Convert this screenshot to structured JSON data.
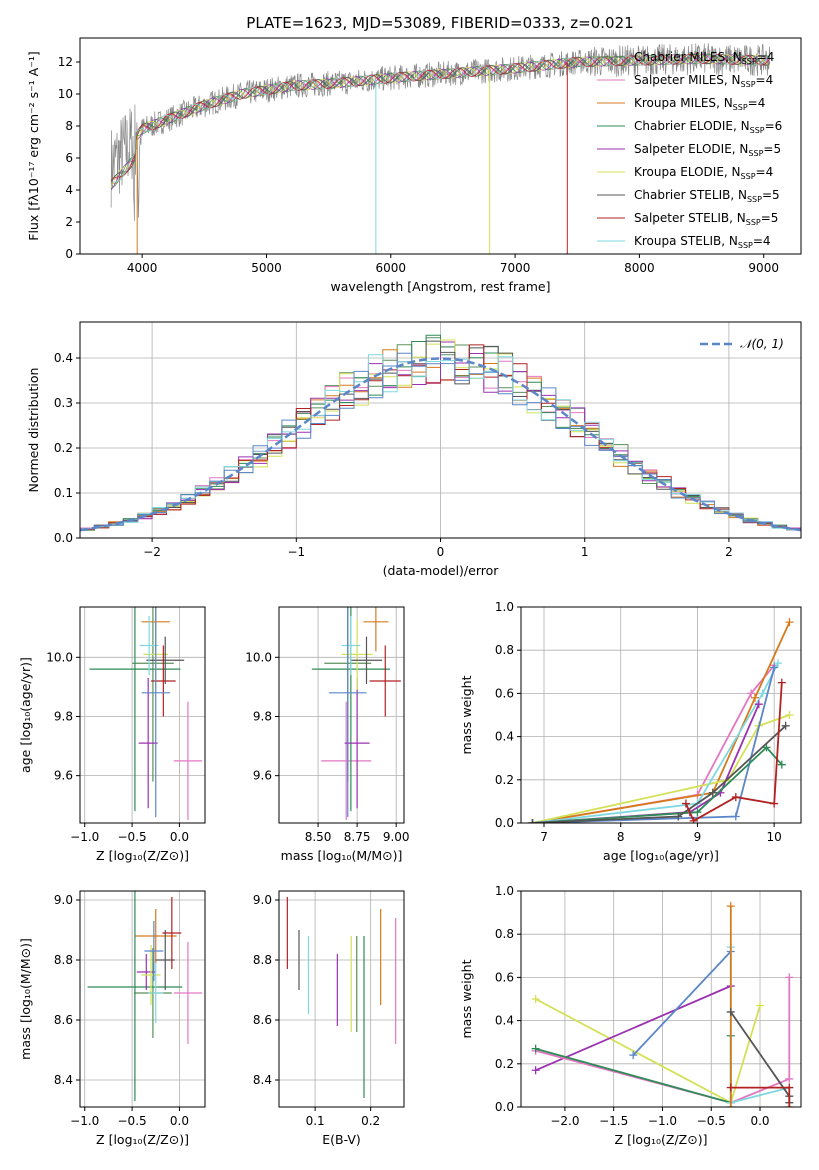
{
  "figure": {
    "title": "PLATE=1623, MJD=53089, FIBERID=0333, z=0.021"
  },
  "colors": {
    "Chabrier MILES": "#5b8f5b",
    "Salpeter MILES": "#e377c2",
    "Kroupa MILES": "#d67a1c",
    "Chabrier ELODIE": "#2e8b57",
    "Salpeter ELODIE": "#9b30b0",
    "Kroupa ELODIE": "#d4e157",
    "Chabrier STELIB": "#555555",
    "Salpeter STELIB": "#b22222",
    "Kroupa STELIB": "#7fd8e0",
    "normal": "#5b86c8",
    "data": "#888888"
  },
  "chart_data": [
    {
      "id": "spectrum",
      "type": "line",
      "title": "PLATE=1623, MJD=53089, FIBERID=0333, z=0.021",
      "xlabel": "wavelength [Angstrom, rest frame]",
      "ylabel": "Flux [fλ10⁻¹⁷ erg cm⁻² s⁻¹ A⁻¹]",
      "xlim": [
        3500,
        9300
      ],
      "ylim": [
        0,
        13.5
      ],
      "xticks": [
        4000,
        5000,
        6000,
        7000,
        8000,
        9000
      ],
      "yticks": [
        0,
        2,
        4,
        6,
        8,
        10,
        12
      ],
      "grid": false,
      "legend_position": "right",
      "legend": [
        {
          "name": "Chabrier MILES",
          "nssp": "4"
        },
        {
          "name": "Salpeter MILES",
          "nssp": "4"
        },
        {
          "name": "Kroupa MILES",
          "nssp": "4"
        },
        {
          "name": "Chabrier ELODIE",
          "nssp": "6"
        },
        {
          "name": "Salpeter ELODIE",
          "nssp": "5"
        },
        {
          "name": "Kroupa ELODIE",
          "nssp": "4"
        },
        {
          "name": "Chabrier STELIB",
          "nssp": "5"
        },
        {
          "name": "Salpeter STELIB",
          "nssp": "5"
        },
        {
          "name": "Kroupa STELIB",
          "nssp": "4"
        }
      ],
      "continuum": {
        "x": [
          3750,
          3900,
          4000,
          4200,
          4500,
          4800,
          5200,
          5600,
          6000,
          6500,
          7000,
          7500,
          8000,
          8500,
          9000
        ],
        "y": [
          5.5,
          6.8,
          7.8,
          8.4,
          9.3,
          10.0,
          10.5,
          10.7,
          11.0,
          11.3,
          11.6,
          12.0,
          12.1,
          12.2,
          12.1
        ]
      }
    },
    {
      "id": "residuals",
      "type": "histogram",
      "xlabel": "(data-model)/error",
      "ylabel": "Normed distribution",
      "xlim": [
        -2.5,
        2.5
      ],
      "ylim": [
        0,
        0.48
      ],
      "xticks": [
        -2,
        -1,
        0,
        1,
        2
      ],
      "xticklabels": [
        "−2",
        "−1",
        "0",
        "1",
        "2"
      ],
      "yticks": [
        0,
        0.1,
        0.2,
        0.3,
        0.4
      ],
      "yticklabels": [
        "0.0",
        "0.1",
        "0.2",
        "0.3",
        "0.4"
      ],
      "grid": true,
      "legend_position": "top-right",
      "legend": [
        "𝒩(0, 1)"
      ],
      "bin_width": 0.1
    },
    {
      "id": "z-age",
      "type": "scatter",
      "xlabel": "Z [log₁₀(Z/Z⊙)]",
      "ylabel": "age  [log₁₀(age/yr)]",
      "xlim": [
        -1.05,
        0.27
      ],
      "ylim": [
        9.44,
        10.17
      ],
      "xticks": [
        -1.0,
        -0.5,
        0.0
      ],
      "xticklabels": [
        "−1.0",
        "−0.5",
        "0.0"
      ],
      "yticks": [
        9.6,
        9.8,
        10.0
      ],
      "yticklabels": [
        "9.6",
        "9.8",
        "10.0"
      ],
      "grid": true,
      "points": [
        {
          "series": "Chabrier MILES",
          "x": -0.28,
          "y": 9.98,
          "xerr": 0.22,
          "yerr": 0.4
        },
        {
          "series": "Salpeter MILES",
          "x": 0.09,
          "y": 9.65,
          "xerr": 0.15,
          "yerr": 0.2
        },
        {
          "series": "Kroupa MILES",
          "x": -0.25,
          "y": 10.12,
          "xerr": 0.15,
          "yerr": 0.1
        },
        {
          "series": "Chabrier ELODIE",
          "x": -0.47,
          "y": 9.96,
          "xerr": 0.48,
          "yerr": 0.48
        },
        {
          "series": "Salpeter ELODIE",
          "x": -0.33,
          "y": 9.71,
          "xerr": 0.1,
          "yerr": 0.22
        },
        {
          "series": "Kroupa ELODIE",
          "x": -0.25,
          "y": 10.01,
          "xerr": 0.13,
          "yerr": 0.12
        },
        {
          "series": "Chabrier STELIB",
          "x": -0.15,
          "y": 9.99,
          "xerr": 0.2,
          "yerr": 0.08
        },
        {
          "series": "Salpeter STELIB",
          "x": -0.17,
          "y": 9.92,
          "xerr": 0.13,
          "yerr": 0.12
        },
        {
          "series": "Kroupa STELIB",
          "x": -0.32,
          "y": 10.04,
          "xerr": 0.1,
          "yerr": 0.1
        },
        {
          "series": "normal",
          "x": -0.25,
          "y": 9.88,
          "xerr": 0.15,
          "yerr": 0.42
        }
      ]
    },
    {
      "id": "mass-age",
      "type": "scatter",
      "xlabel": "mass [log₁₀(M/M⊙)]",
      "ylabel": "",
      "xlim": [
        8.25,
        9.05
      ],
      "ylim": [
        9.44,
        10.17
      ],
      "xticks": [
        8.5,
        8.75,
        9.0
      ],
      "xticklabels": [
        "8.50",
        "8.75",
        "9.00"
      ],
      "yticks": [
        9.6,
        9.8,
        10.0
      ],
      "yticklabels": [
        "9.6",
        "9.8",
        "10.0"
      ],
      "grid": true,
      "points": [
        {
          "series": "Chabrier MILES",
          "x": 8.69,
          "y": 9.98,
          "xerr": 0.15,
          "yerr": 0.4
        },
        {
          "series": "Salpeter MILES",
          "x": 8.68,
          "y": 9.65,
          "xerr": 0.16,
          "yerr": 0.2
        },
        {
          "series": "Kroupa MILES",
          "x": 8.87,
          "y": 10.12,
          "xerr": 0.08,
          "yerr": 0.1
        },
        {
          "series": "Chabrier ELODIE",
          "x": 8.71,
          "y": 9.96,
          "xerr": 0.25,
          "yerr": 0.48
        },
        {
          "series": "Salpeter ELODIE",
          "x": 8.75,
          "y": 9.71,
          "xerr": 0.08,
          "yerr": 0.22
        },
        {
          "series": "Kroupa ELODIE",
          "x": 8.75,
          "y": 10.01,
          "xerr": 0.1,
          "yerr": 0.12
        },
        {
          "series": "Chabrier STELIB",
          "x": 8.81,
          "y": 9.99,
          "xerr": 0.1,
          "yerr": 0.08
        },
        {
          "series": "Salpeter STELIB",
          "x": 8.93,
          "y": 9.92,
          "xerr": 0.1,
          "yerr": 0.12
        },
        {
          "series": "Kroupa STELIB",
          "x": 8.71,
          "y": 10.04,
          "xerr": 0.06,
          "yerr": 0.1
        },
        {
          "series": "normal",
          "x": 8.69,
          "y": 9.88,
          "xerr": 0.12,
          "yerr": 0.42
        }
      ]
    },
    {
      "id": "age-weight",
      "type": "line",
      "xlabel": "age  [log₁₀(age/yr)]",
      "ylabel": "mass weight",
      "xlim": [
        6.7,
        10.35
      ],
      "ylim": [
        0,
        1.0
      ],
      "xticks": [
        7,
        8,
        9,
        10
      ],
      "yticks": [
        0,
        0.2,
        0.4,
        0.6,
        0.8,
        1.0
      ],
      "yticklabels": [
        "0.0",
        "0.2",
        "0.4",
        "0.6",
        "0.8",
        "1.0"
      ],
      "grid": true,
      "series": [
        {
          "name": "Salpeter MILES",
          "x": [
            6.85,
            9.0,
            9.7,
            10.0
          ],
          "y": [
            0.0,
            0.13,
            0.6,
            0.73
          ]
        },
        {
          "name": "Kroupa MILES",
          "x": [
            6.85,
            9.2,
            9.75,
            10.2
          ],
          "y": [
            0.0,
            0.14,
            0.58,
            0.93
          ]
        },
        {
          "name": "Kroupa ELODIE",
          "x": [
            6.85,
            9.4,
            9.8,
            10.2
          ],
          "y": [
            0.0,
            0.2,
            0.45,
            0.5
          ]
        },
        {
          "name": "Kroupa STELIB",
          "x": [
            6.85,
            9.0,
            9.85,
            10.05
          ],
          "y": [
            0.0,
            0.09,
            0.6,
            0.74
          ]
        },
        {
          "name": "normal",
          "x": [
            6.85,
            9.5,
            10.0
          ],
          "y": [
            0.0,
            0.03,
            0.72
          ]
        },
        {
          "name": "Salpeter ELODIE",
          "x": [
            6.85,
            8.9,
            9.3,
            9.8
          ],
          "y": [
            0.0,
            0.05,
            0.14,
            0.55
          ]
        },
        {
          "name": "Chabrier ELODIE",
          "x": [
            6.85,
            9.0,
            9.9,
            10.1
          ],
          "y": [
            0.0,
            0.05,
            0.35,
            0.27
          ]
        },
        {
          "name": "Chabrier STELIB",
          "x": [
            6.85,
            8.75,
            9.2,
            10.15
          ],
          "y": [
            0.0,
            0.03,
            0.14,
            0.45
          ]
        },
        {
          "name": "Salpeter STELIB",
          "x": [
            8.85,
            8.95,
            9.5,
            10.0,
            10.1
          ],
          "y": [
            0.09,
            0.01,
            0.12,
            0.09,
            0.65
          ]
        }
      ]
    },
    {
      "id": "z-mass",
      "type": "scatter",
      "xlabel": "Z [log₁₀(Z/Z⊙)]",
      "ylabel": "mass [log₁₀(M/M⊙)]",
      "xlim": [
        -1.05,
        0.27
      ],
      "ylim": [
        8.31,
        9.03
      ],
      "xticks": [
        -1.0,
        -0.5,
        0.0
      ],
      "xticklabels": [
        "−1.0",
        "−0.5",
        "0.0"
      ],
      "yticks": [
        8.4,
        8.6,
        8.8,
        9.0
      ],
      "yticklabels": [
        "8.4",
        "8.6",
        "8.8",
        "9.0"
      ],
      "grid": true,
      "points": [
        {
          "series": "Chabrier MILES",
          "x": -0.28,
          "y": 8.69,
          "xerr": 0.2,
          "yerr": 0.15
        },
        {
          "series": "Salpeter MILES",
          "x": 0.09,
          "y": 8.69,
          "xerr": 0.15,
          "yerr": 0.17
        },
        {
          "series": "Kroupa MILES",
          "x": -0.25,
          "y": 8.88,
          "xerr": 0.22,
          "yerr": 0.09
        },
        {
          "series": "Chabrier ELODIE",
          "x": -0.47,
          "y": 8.71,
          "xerr": 0.5,
          "yerr": 0.38
        },
        {
          "series": "Salpeter ELODIE",
          "x": -0.35,
          "y": 8.76,
          "xerr": 0.1,
          "yerr": 0.06
        },
        {
          "series": "Kroupa ELODIE",
          "x": -0.3,
          "y": 8.75,
          "xerr": 0.1,
          "yerr": 0.1
        },
        {
          "series": "Chabrier STELIB",
          "x": -0.15,
          "y": 8.8,
          "xerr": 0.1,
          "yerr": 0.1
        },
        {
          "series": "Salpeter STELIB",
          "x": -0.08,
          "y": 8.89,
          "xerr": 0.1,
          "yerr": 0.12
        },
        {
          "series": "Kroupa STELIB",
          "x": -0.25,
          "y": 8.69,
          "xerr": 0.08,
          "yerr": 0.1
        },
        {
          "series": "normal",
          "x": -0.27,
          "y": 8.83,
          "xerr": 0.1,
          "yerr": 0.1
        }
      ]
    },
    {
      "id": "ebv-mass",
      "type": "scatter",
      "xlabel": "E(B-V)",
      "ylabel": "",
      "xlim": [
        0.035,
        0.26
      ],
      "ylim": [
        8.31,
        9.03
      ],
      "xticks": [
        0.1,
        0.2
      ],
      "xticklabels": [
        "0.1",
        "0.2"
      ],
      "yticks": [
        8.4,
        8.6,
        8.8,
        9.0
      ],
      "yticklabels": [
        "8.4",
        "8.6",
        "8.8",
        "9.0"
      ],
      "grid": true,
      "points": [
        {
          "series": "Salpeter STELIB",
          "x": 0.05,
          "y": 8.89,
          "yerr": 0.12
        },
        {
          "series": "Chabrier STELIB",
          "x": 0.071,
          "y": 8.8,
          "yerr": 0.1
        },
        {
          "series": "Kroupa STELIB",
          "x": 0.088,
          "y": 8.75,
          "yerr": 0.13
        },
        {
          "series": "Salpeter ELODIE",
          "x": 0.14,
          "y": 8.7,
          "yerr": 0.12
        },
        {
          "series": "Kroupa ELODIE",
          "x": 0.165,
          "y": 8.72,
          "yerr": 0.16
        },
        {
          "series": "Chabrier MILES",
          "x": 0.175,
          "y": 8.72,
          "yerr": 0.16
        },
        {
          "series": "Chabrier ELODIE",
          "x": 0.188,
          "y": 8.61,
          "yerr": 0.27
        },
        {
          "series": "Kroupa MILES",
          "x": 0.218,
          "y": 8.81,
          "yerr": 0.16
        },
        {
          "series": "Salpeter MILES",
          "x": 0.245,
          "y": 8.73,
          "yerr": 0.21
        }
      ]
    },
    {
      "id": "z-weight",
      "type": "line",
      "xlabel": "Z [log₁₀(Z/Z⊙)]",
      "ylabel": "mass weight",
      "xlim": [
        -2.45,
        0.42
      ],
      "ylim": [
        0,
        1.0
      ],
      "xticks": [
        -2.0,
        -1.5,
        -1.0,
        -0.5,
        0.0
      ],
      "xticklabels": [
        "−2.0",
        "−1.5",
        "−1.0",
        "−0.5",
        "0.0"
      ],
      "yticks": [
        0,
        0.2,
        0.4,
        0.6,
        0.8,
        1.0
      ],
      "yticklabels": [
        "0.0",
        "0.2",
        "0.4",
        "0.6",
        "0.8",
        "1.0"
      ],
      "grid": true,
      "series": [
        {
          "name": "Kroupa ELODIE",
          "x": [
            -2.3,
            -0.3,
            0.0
          ],
          "y": [
            0.5,
            0.02,
            0.47
          ]
        },
        {
          "name": "Salpeter ELODIE",
          "x": [
            -2.3,
            -0.3
          ],
          "y": [
            0.17,
            0.56
          ]
        },
        {
          "name": "Salpeter MILES",
          "x": [
            -2.3,
            -0.3,
            0.3,
            0.3
          ],
          "y": [
            0.26,
            0.02,
            0.13,
            0.6
          ]
        },
        {
          "name": "Chabrier ELODIE",
          "x": [
            -2.3,
            -0.3,
            -0.3
          ],
          "y": [
            0.27,
            0.02,
            0.33
          ]
        },
        {
          "name": "normal",
          "x": [
            -1.3,
            -0.3
          ],
          "y": [
            0.24,
            0.72
          ]
        },
        {
          "name": "Kroupa STELIB",
          "x": [
            -0.3,
            -0.3,
            0.3
          ],
          "y": [
            0.74,
            0.02,
            0.09
          ]
        },
        {
          "name": "Kroupa MILES",
          "x": [
            -0.3,
            -0.3
          ],
          "y": [
            0.93,
            0.0
          ]
        },
        {
          "name": "Chabrier STELIB",
          "x": [
            -0.3,
            0.3,
            0.3
          ],
          "y": [
            0.44,
            0.05,
            0.02
          ]
        },
        {
          "name": "Salpeter STELIB",
          "x": [
            -0.3,
            0.3,
            0.3
          ],
          "y": [
            0.09,
            0.09,
            0.0
          ]
        }
      ]
    }
  ]
}
